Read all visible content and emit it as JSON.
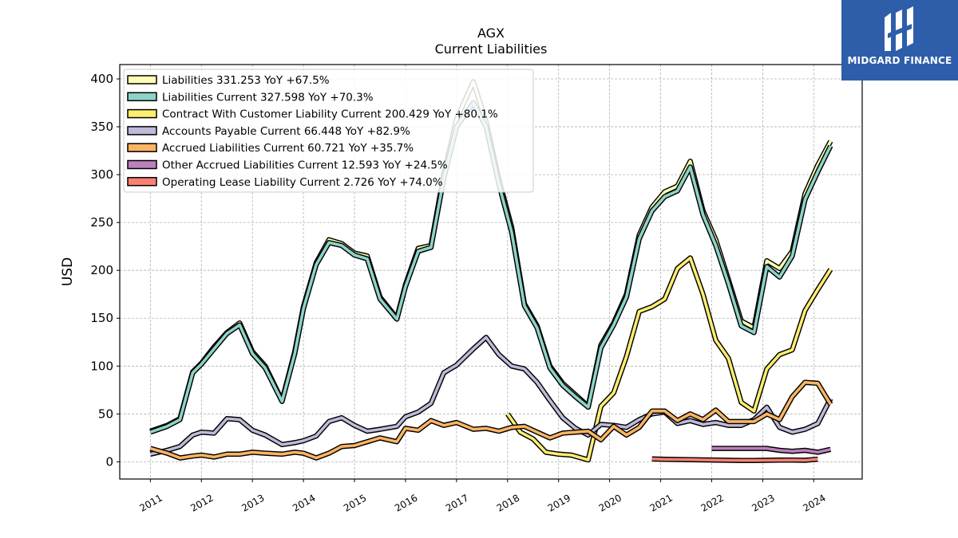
{
  "chart_data": {
    "type": "line",
    "title": "AGX",
    "subtitle": "Current  Liabilities",
    "ylabel": "USD",
    "xlabel": "",
    "ylim": [
      -18,
      415
    ],
    "xlim": [
      2010.4,
      2024.95
    ],
    "yticks": [
      0,
      50,
      100,
      150,
      200,
      250,
      300,
      350,
      400
    ],
    "xticks": [
      2011,
      2012,
      2013,
      2014,
      2015,
      2016,
      2017,
      2018,
      2019,
      2020,
      2021,
      2022,
      2023,
      2024
    ],
    "grid": true,
    "legend_position": "top-left",
    "series": [
      {
        "name": "Liabilities",
        "legend": "Liabilities  331.253 YoY +67.5%",
        "color": "#ffffb3",
        "points": [
          [
            2011.0,
            32
          ],
          [
            2011.33,
            38
          ],
          [
            2011.58,
            45
          ],
          [
            2011.83,
            94
          ],
          [
            2012.0,
            103
          ],
          [
            2012.25,
            120
          ],
          [
            2012.5,
            135
          ],
          [
            2012.75,
            145
          ],
          [
            2013.0,
            115
          ],
          [
            2013.25,
            100
          ],
          [
            2013.58,
            64
          ],
          [
            2013.83,
            115
          ],
          [
            2014.0,
            162
          ],
          [
            2014.25,
            208
          ],
          [
            2014.5,
            232
          ],
          [
            2014.75,
            228
          ],
          [
            2015.0,
            218
          ],
          [
            2015.25,
            215
          ],
          [
            2015.5,
            172
          ],
          [
            2015.83,
            150
          ],
          [
            2016.0,
            185
          ],
          [
            2016.25,
            223
          ],
          [
            2016.5,
            226
          ],
          [
            2016.75,
            300
          ],
          [
            2017.0,
            358
          ],
          [
            2017.33,
            397
          ],
          [
            2017.58,
            355
          ],
          [
            2017.83,
            295
          ],
          [
            2018.08,
            245
          ],
          [
            2018.33,
            165
          ],
          [
            2018.58,
            142
          ],
          [
            2018.83,
            100
          ],
          [
            2019.08,
            82
          ],
          [
            2019.33,
            70
          ],
          [
            2019.58,
            58
          ],
          [
            2019.83,
            122
          ],
          [
            2020.08,
            145
          ],
          [
            2020.33,
            175
          ],
          [
            2020.58,
            237
          ],
          [
            2020.83,
            266
          ],
          [
            2021.08,
            282
          ],
          [
            2021.33,
            288
          ],
          [
            2021.58,
            314
          ],
          [
            2021.83,
            262
          ],
          [
            2022.08,
            232
          ],
          [
            2022.33,
            190
          ],
          [
            2022.58,
            147
          ],
          [
            2022.83,
            140
          ],
          [
            2023.08,
            210
          ],
          [
            2023.33,
            202
          ],
          [
            2023.58,
            220
          ],
          [
            2023.83,
            280
          ],
          [
            2024.08,
            310
          ],
          [
            2024.33,
            335
          ]
        ]
      },
      {
        "name": "Liabilities Current",
        "legend": "Liabilities Current  327.598 YoY +70.3%",
        "color": "#8dd3c7",
        "points": [
          [
            2011.0,
            31
          ],
          [
            2011.33,
            37
          ],
          [
            2011.58,
            44
          ],
          [
            2011.83,
            93
          ],
          [
            2012.0,
            102
          ],
          [
            2012.25,
            118
          ],
          [
            2012.5,
            134
          ],
          [
            2012.75,
            143
          ],
          [
            2013.0,
            113
          ],
          [
            2013.25,
            98
          ],
          [
            2013.58,
            63
          ],
          [
            2013.83,
            113
          ],
          [
            2014.0,
            160
          ],
          [
            2014.25,
            206
          ],
          [
            2014.5,
            229
          ],
          [
            2014.75,
            226
          ],
          [
            2015.0,
            216
          ],
          [
            2015.25,
            212
          ],
          [
            2015.5,
            170
          ],
          [
            2015.83,
            149
          ],
          [
            2016.0,
            183
          ],
          [
            2016.25,
            220
          ],
          [
            2016.5,
            224
          ],
          [
            2016.75,
            296
          ],
          [
            2017.0,
            350
          ],
          [
            2017.33,
            375
          ],
          [
            2017.58,
            350
          ],
          [
            2017.83,
            290
          ],
          [
            2018.08,
            240
          ],
          [
            2018.33,
            163
          ],
          [
            2018.58,
            140
          ],
          [
            2018.83,
            98
          ],
          [
            2019.08,
            80
          ],
          [
            2019.33,
            68
          ],
          [
            2019.58,
            57
          ],
          [
            2019.83,
            119
          ],
          [
            2020.08,
            143
          ],
          [
            2020.33,
            172
          ],
          [
            2020.58,
            233
          ],
          [
            2020.83,
            262
          ],
          [
            2021.08,
            277
          ],
          [
            2021.33,
            283
          ],
          [
            2021.58,
            308
          ],
          [
            2021.83,
            258
          ],
          [
            2022.08,
            226
          ],
          [
            2022.33,
            186
          ],
          [
            2022.58,
            142
          ],
          [
            2022.83,
            135
          ],
          [
            2023.08,
            204
          ],
          [
            2023.33,
            193
          ],
          [
            2023.58,
            215
          ],
          [
            2023.83,
            274
          ],
          [
            2024.08,
            303
          ],
          [
            2024.33,
            330
          ]
        ]
      },
      {
        "name": "Contract With Customer Liability Current",
        "legend": "Contract With Customer Liability Current  200.429 YoY +80.1%",
        "color": "#ffed6f",
        "points": [
          [
            2018.0,
            50
          ],
          [
            2018.25,
            31
          ],
          [
            2018.5,
            24
          ],
          [
            2018.75,
            10
          ],
          [
            2019.0,
            8
          ],
          [
            2019.25,
            7
          ],
          [
            2019.58,
            2
          ],
          [
            2019.83,
            58
          ],
          [
            2020.08,
            72
          ],
          [
            2020.33,
            110
          ],
          [
            2020.58,
            157
          ],
          [
            2020.83,
            162
          ],
          [
            2021.08,
            170
          ],
          [
            2021.33,
            202
          ],
          [
            2021.58,
            213
          ],
          [
            2021.83,
            175
          ],
          [
            2022.08,
            127
          ],
          [
            2022.33,
            108
          ],
          [
            2022.58,
            62
          ],
          [
            2022.83,
            53
          ],
          [
            2023.08,
            97
          ],
          [
            2023.33,
            112
          ],
          [
            2023.58,
            117
          ],
          [
            2023.83,
            158
          ],
          [
            2024.08,
            180
          ],
          [
            2024.33,
            201
          ]
        ]
      },
      {
        "name": "Accounts Payable Current",
        "legend": "Accounts Payable Current  66.448 YoY +82.9%",
        "color": "#bebada",
        "points": [
          [
            2011.0,
            8
          ],
          [
            2011.33,
            12
          ],
          [
            2011.58,
            16
          ],
          [
            2011.83,
            28
          ],
          [
            2012.0,
            31
          ],
          [
            2012.25,
            30
          ],
          [
            2012.5,
            45
          ],
          [
            2012.75,
            44
          ],
          [
            2013.0,
            33
          ],
          [
            2013.25,
            28
          ],
          [
            2013.58,
            18
          ],
          [
            2013.83,
            20
          ],
          [
            2014.0,
            22
          ],
          [
            2014.25,
            27
          ],
          [
            2014.5,
            42
          ],
          [
            2014.75,
            46
          ],
          [
            2015.0,
            38
          ],
          [
            2015.25,
            32
          ],
          [
            2015.5,
            34
          ],
          [
            2015.83,
            37
          ],
          [
            2016.0,
            47
          ],
          [
            2016.25,
            52
          ],
          [
            2016.5,
            61
          ],
          [
            2016.75,
            93
          ],
          [
            2017.0,
            101
          ],
          [
            2017.33,
            118
          ],
          [
            2017.58,
            130
          ],
          [
            2017.83,
            112
          ],
          [
            2018.08,
            100
          ],
          [
            2018.33,
            97
          ],
          [
            2018.58,
            83
          ],
          [
            2018.83,
            64
          ],
          [
            2019.08,
            46
          ],
          [
            2019.33,
            35
          ],
          [
            2019.58,
            28
          ],
          [
            2019.83,
            39
          ],
          [
            2020.08,
            38
          ],
          [
            2020.33,
            36
          ],
          [
            2020.58,
            44
          ],
          [
            2020.83,
            50
          ],
          [
            2021.08,
            52
          ],
          [
            2021.33,
            40
          ],
          [
            2021.58,
            43
          ],
          [
            2021.83,
            39
          ],
          [
            2022.08,
            41
          ],
          [
            2022.33,
            38
          ],
          [
            2022.58,
            38
          ],
          [
            2022.83,
            44
          ],
          [
            2023.08,
            57
          ],
          [
            2023.33,
            36
          ],
          [
            2023.58,
            31
          ],
          [
            2023.83,
            34
          ],
          [
            2024.08,
            40
          ],
          [
            2024.33,
            66
          ]
        ]
      },
      {
        "name": "Accrued Liabilities Current",
        "legend": "Accrued Liabilities Current  60.721 YoY +35.7%",
        "color": "#fdb462",
        "points": [
          [
            2011.0,
            14
          ],
          [
            2011.33,
            9
          ],
          [
            2011.58,
            4
          ],
          [
            2011.83,
            6
          ],
          [
            2012.0,
            7
          ],
          [
            2012.25,
            5
          ],
          [
            2012.5,
            8
          ],
          [
            2012.75,
            8
          ],
          [
            2013.0,
            10
          ],
          [
            2013.25,
            9
          ],
          [
            2013.58,
            8
          ],
          [
            2013.83,
            10
          ],
          [
            2014.0,
            9
          ],
          [
            2014.25,
            4
          ],
          [
            2014.5,
            9
          ],
          [
            2014.75,
            16
          ],
          [
            2015.0,
            17
          ],
          [
            2015.25,
            21
          ],
          [
            2015.5,
            25
          ],
          [
            2015.83,
            21
          ],
          [
            2016.0,
            35
          ],
          [
            2016.25,
            33
          ],
          [
            2016.5,
            43
          ],
          [
            2016.75,
            38
          ],
          [
            2017.0,
            41
          ],
          [
            2017.33,
            34
          ],
          [
            2017.58,
            35
          ],
          [
            2017.83,
            32
          ],
          [
            2018.08,
            36
          ],
          [
            2018.33,
            37
          ],
          [
            2018.58,
            31
          ],
          [
            2018.83,
            25
          ],
          [
            2019.08,
            30
          ],
          [
            2019.33,
            31
          ],
          [
            2019.58,
            32
          ],
          [
            2019.83,
            23
          ],
          [
            2020.08,
            37
          ],
          [
            2020.33,
            28
          ],
          [
            2020.58,
            36
          ],
          [
            2020.83,
            53
          ],
          [
            2021.08,
            53
          ],
          [
            2021.33,
            43
          ],
          [
            2021.58,
            50
          ],
          [
            2021.83,
            44
          ],
          [
            2022.08,
            54
          ],
          [
            2022.33,
            42
          ],
          [
            2022.58,
            42
          ],
          [
            2022.83,
            42
          ],
          [
            2023.08,
            50
          ],
          [
            2023.33,
            44
          ],
          [
            2023.58,
            68
          ],
          [
            2023.83,
            83
          ],
          [
            2024.08,
            82
          ],
          [
            2024.33,
            60
          ]
        ]
      },
      {
        "name": "Other Accrued Liabilities Current",
        "legend": "Other Accrued Liabilities Current  12.593 YoY +24.5%",
        "color": "#bc80bd",
        "points": [
          [
            2022.0,
            14
          ],
          [
            2022.33,
            14
          ],
          [
            2022.58,
            14
          ],
          [
            2022.83,
            14
          ],
          [
            2023.08,
            14
          ],
          [
            2023.33,
            12
          ],
          [
            2023.58,
            11
          ],
          [
            2023.83,
            12
          ],
          [
            2024.08,
            10
          ],
          [
            2024.33,
            13
          ]
        ]
      },
      {
        "name": "Operating Lease Liability Current",
        "legend": "Operating Lease Liability Current  2.726 YoY +74.0%",
        "color": "#fb8072",
        "points": [
          [
            2020.83,
            3
          ],
          [
            2021.08,
            2.6
          ],
          [
            2021.33,
            2.4
          ],
          [
            2021.58,
            2.2
          ],
          [
            2021.83,
            2.0
          ],
          [
            2022.08,
            1.8
          ],
          [
            2022.33,
            1.6
          ],
          [
            2022.58,
            1.4
          ],
          [
            2022.83,
            1.4
          ],
          [
            2023.08,
            1.6
          ],
          [
            2023.33,
            1.7
          ],
          [
            2023.58,
            1.8
          ],
          [
            2023.83,
            1.6
          ],
          [
            2024.08,
            2.7
          ]
        ]
      }
    ]
  },
  "logo": {
    "text": "MIDGARD FINANCE"
  }
}
